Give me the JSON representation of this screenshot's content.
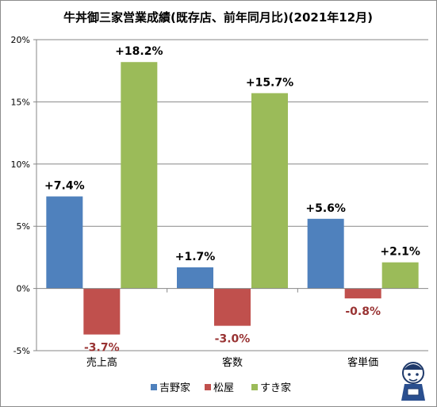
{
  "chart_data": {
    "type": "bar",
    "title": "牛丼御三家営業成績(既存店、前年同月比)(2021年12月)",
    "categories": [
      "売上高",
      "客数",
      "客単価"
    ],
    "series": [
      {
        "name": "吉野家",
        "color": "#4f81bd",
        "values": [
          7.4,
          1.7,
          5.6
        ],
        "labels": [
          "+7.4%",
          "+1.7%",
          "+5.6%"
        ]
      },
      {
        "name": "松屋",
        "color": "#c0504d",
        "values": [
          -3.7,
          -3.0,
          -0.8
        ],
        "labels": [
          "-3.7%",
          "-3.0%",
          "-0.8%"
        ]
      },
      {
        "name": "すき家",
        "color": "#9bbb59",
        "values": [
          18.2,
          15.7,
          2.1
        ],
        "labels": [
          "+18.2%",
          "+15.7%",
          "+2.1%"
        ]
      }
    ],
    "yticks": [
      "-5%",
      "0%",
      "5%",
      "10%",
      "15%",
      "20%"
    ],
    "ytick_values": [
      -5,
      0,
      5,
      10,
      15,
      20
    ],
    "ylim": [
      -5,
      20
    ],
    "gridlines": true,
    "legend_position": "bottom",
    "negative_label_color": "#993333",
    "positive_label_color": "#000000"
  }
}
